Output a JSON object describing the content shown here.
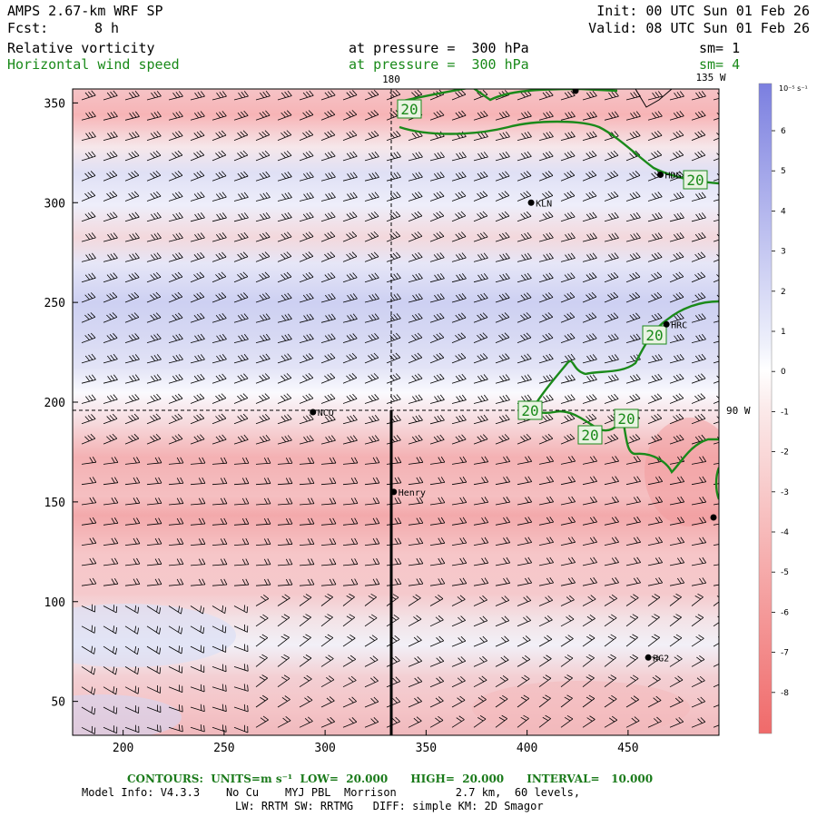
{
  "header": {
    "model": "AMPS 2.67-km WRF SP",
    "fcst_label": "Fcst:",
    "fcst_value": "8 h",
    "init": "Init: 00 UTC Sun 01 Feb 26",
    "valid": "Valid: 08 UTC Sun 01 Feb 26"
  },
  "fields": [
    {
      "name": "Relative vorticity",
      "pressure": "at pressure =  300 hPa",
      "smooth": "sm= 1",
      "color": "#000000"
    },
    {
      "name": "Horizontal wind speed",
      "pressure": "at pressure =  300 hPa",
      "smooth": "sm= 4",
      "color": "#1a8a1a"
    }
  ],
  "map": {
    "x_ticks": [
      "200",
      "250",
      "300",
      "350",
      "400",
      "450"
    ],
    "y_ticks": [
      "350",
      "300",
      "250",
      "200",
      "150",
      "100",
      "50"
    ],
    "x_range": [
      175,
      495
    ],
    "y_range": [
      33,
      357
    ],
    "meridians": [
      {
        "label": "180",
        "x": 334
      },
      {
        "label": "135 W",
        "x": 480
      },
      {
        "label": "90 W",
        "x": 560
      }
    ],
    "stations": [
      {
        "label": "KLN",
        "x": 402,
        "y": 300
      },
      {
        "label": "HDG",
        "x": 466,
        "y": 314
      },
      {
        "label": "HRC",
        "x": 469,
        "y": 239
      },
      {
        "label": "NCO",
        "x": 294,
        "y": 195
      },
      {
        "label": "Henry",
        "x": 334,
        "y": 155
      },
      {
        "label": "HG2",
        "x": 460,
        "y": 72
      }
    ],
    "contour_labels": [
      "20",
      "20",
      "20",
      "20",
      "20",
      "20"
    ],
    "contour_color": "#1a8a1a"
  },
  "colorbar": {
    "unit": "10⁻⁵ s⁻¹",
    "ticks": [
      "6",
      "5",
      "4",
      "3",
      "2",
      "1",
      "0",
      "-1",
      "-2",
      "-3",
      "-4",
      "-5",
      "-6",
      "-7",
      "-8"
    ],
    "positive_color": "#7b7fe0",
    "negative_color": "#f06a6a"
  },
  "footer": {
    "contours": "CONTOURS:  UNITS=m s⁻¹  LOW=  20.000      HIGH=  20.000      INTERVAL=   10.000",
    "model_info": "Model Info: V4.3.3    No Cu    MYJ PBL  Morrison         2.7 km,  60 levels,",
    "physics": "LW: RRTM SW: RRTMG   DIFF: simple KM: 2D Smagor"
  }
}
